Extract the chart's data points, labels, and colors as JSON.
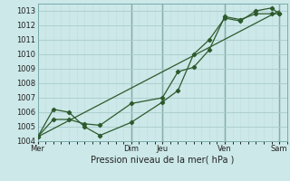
{
  "xlabel": "Pression niveau de la mer( hPa )",
  "background_color": "#cce8e8",
  "grid_color_major": "#aacccc",
  "grid_color_minor": "#c0dcdc",
  "line_color": "#2d5a2d",
  "ylim": [
    1004,
    1013.5
  ],
  "yticks": [
    1004,
    1005,
    1006,
    1007,
    1008,
    1009,
    1010,
    1011,
    1012,
    1013
  ],
  "xlim": [
    0,
    96
  ],
  "day_labels": [
    "Mer",
    "Dim",
    "Jeu",
    "Ven",
    "Sam"
  ],
  "day_positions": [
    0,
    36,
    48,
    72,
    93
  ],
  "vline_positions": [
    36,
    48,
    72,
    93
  ],
  "series1_x": [
    0,
    6,
    12,
    18,
    24,
    36,
    48,
    54,
    60,
    66,
    72,
    78,
    84,
    90,
    93
  ],
  "series1_y": [
    1004.3,
    1006.2,
    1006.0,
    1005.0,
    1004.4,
    1005.3,
    1006.7,
    1007.5,
    1010.0,
    1011.0,
    1012.5,
    1012.3,
    1013.0,
    1013.2,
    1012.8
  ],
  "series2_x": [
    0,
    6,
    12,
    18,
    24,
    36,
    48,
    54,
    60,
    66,
    72,
    78,
    84,
    90,
    93
  ],
  "series2_y": [
    1004.3,
    1005.5,
    1005.5,
    1005.2,
    1005.1,
    1006.6,
    1007.0,
    1008.8,
    1009.1,
    1010.3,
    1012.6,
    1012.4,
    1012.8,
    1012.8,
    1012.8
  ],
  "series3_x": [
    0,
    93
  ],
  "series3_y": [
    1004.3,
    1013.0
  ],
  "xlabel_fontsize": 7.0,
  "tick_fontsize": 6.0
}
